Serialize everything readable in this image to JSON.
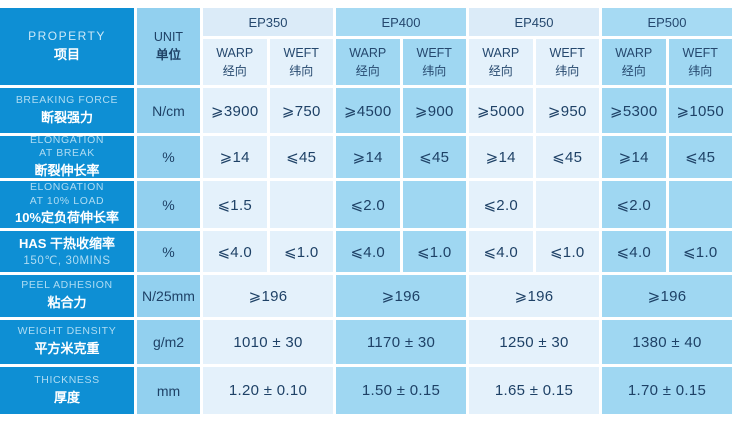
{
  "title": "Conveyor belt technical specification table",
  "colors": {
    "left_column_blue": "#0e8fd4",
    "unit_column_blue": "#92d0ef",
    "pale_group_blue": "#e4f1fb",
    "medium_group_blue": "#9fd7f2",
    "grid_line_white": "#ffffff",
    "value_text_navy": "#1e4166",
    "label_en_light_blue": "#aedcf3",
    "label_zh_white": "#ffffff"
  },
  "header": {
    "property": {
      "en": "PROPERTY",
      "zh": "项目"
    },
    "unit": {
      "en": "UNIT",
      "zh": "单位"
    },
    "groups": [
      "EP350",
      "EP400",
      "EP450",
      "EP500"
    ],
    "warp": {
      "en": "WARP",
      "zh": "经向"
    },
    "weft": {
      "en": "WEFT",
      "zh": "纬向"
    }
  },
  "rows": [
    {
      "label": [
        {
          "t": "BREAKING FORCE",
          "s": "en"
        },
        {
          "t": "断裂强力",
          "s": "zh"
        }
      ],
      "unit": "N/cm",
      "values": [
        "⩾3900",
        "⩾750",
        "⩾4500",
        "⩾900",
        "⩾5000",
        "⩾950",
        "⩾5300",
        "⩾1050"
      ]
    },
    {
      "label": [
        {
          "t": "ELONGATION",
          "s": "en"
        },
        {
          "t": "AT BREAK",
          "s": "en"
        },
        {
          "t": "断裂伸长率",
          "s": "zh"
        }
      ],
      "unit": "%",
      "values": [
        "⩾14",
        "⩽45",
        "⩾14",
        "⩽45",
        "⩾14",
        "⩽45",
        "⩾14",
        "⩽45"
      ]
    },
    {
      "label": [
        {
          "t": "ELONGATION",
          "s": "en"
        },
        {
          "t": "AT 10% LOAD",
          "s": "en"
        },
        {
          "t": "10%定负荷伸长率",
          "s": "zh"
        }
      ],
      "unit": "%",
      "values": [
        "⩽1.5",
        "",
        "⩽2.0",
        "",
        "⩽2.0",
        "",
        "⩽2.0",
        ""
      ]
    },
    {
      "label": [
        {
          "t": "HAS  干热收缩率",
          "s": "zh"
        },
        {
          "t": "150℃, 30MINS",
          "s": "en"
        }
      ],
      "unit": "%",
      "values": [
        "⩽4.0",
        "⩽1.0",
        "⩽4.0",
        "⩽1.0",
        "⩽4.0",
        "⩽1.0",
        "⩽4.0",
        "⩽1.0"
      ]
    },
    {
      "label": [
        {
          "t": "PEEL ADHESION",
          "s": "en"
        },
        {
          "t": "粘合力",
          "s": "zh"
        }
      ],
      "unit": "N/25mm",
      "merged": true,
      "values": [
        "⩾196",
        "⩾196",
        "⩾196",
        "⩾196"
      ]
    },
    {
      "label": [
        {
          "t": "WEIGHT DENSITY",
          "s": "en"
        },
        {
          "t": "平方米克重",
          "s": "zh"
        }
      ],
      "unit": "g/m2",
      "merged": true,
      "values": [
        "1010 ± 30",
        "1170 ± 30",
        "1250 ± 30",
        "1380 ± 40"
      ]
    },
    {
      "label": [
        {
          "t": "THICKNESS",
          "s": "en"
        },
        {
          "t": "厚度",
          "s": "zh"
        }
      ],
      "unit": "mm",
      "merged": true,
      "values": [
        "1.20 ± 0.10",
        "1.50 ± 0.15",
        "1.65 ± 0.15",
        "1.70 ± 0.15"
      ]
    }
  ]
}
